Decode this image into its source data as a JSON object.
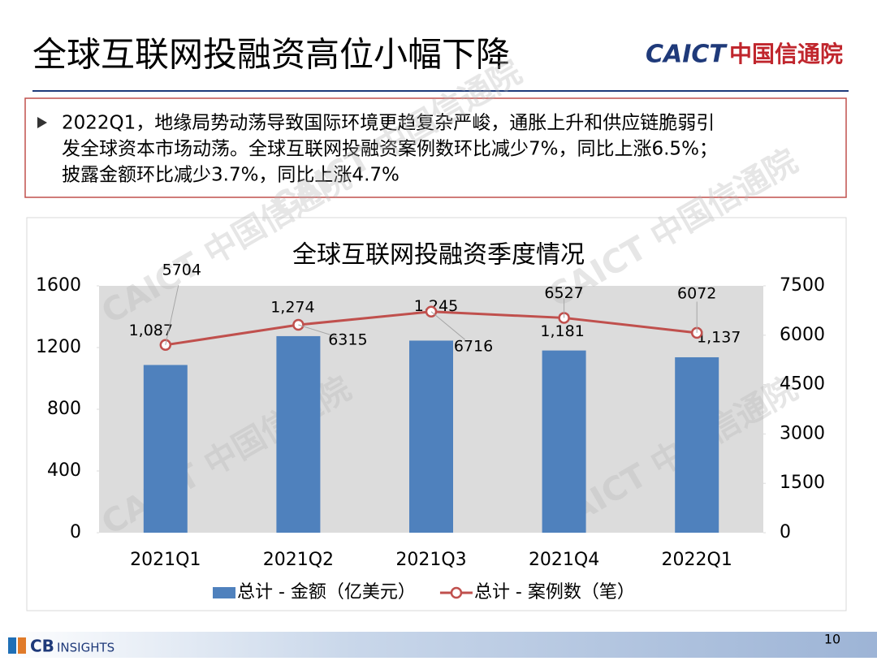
{
  "header": {
    "title": "全球互联网投融资高位小幅下降",
    "logo_en": "CAICT",
    "logo_cn": "中国信通院"
  },
  "bullet": {
    "lines": [
      "2022Q1，地缘局势动荡导致国际环境更趋复杂严峻，通胀上升和供应链脆弱引",
      "发全球资本市场动荡。全球互联网投融资案例数环比减少7%，同比上涨6.5%；",
      "披露金额环比减少3.7%，同比上涨4.7%"
    ]
  },
  "watermark": "CAICT 中国信通院",
  "chart_data": {
    "type": "bar",
    "title": "全球互联网投融资季度情况",
    "categories": [
      "2021Q1",
      "2021Q2",
      "2021Q3",
      "2021Q4",
      "2022Q1"
    ],
    "series": [
      {
        "name": "总计 - 金额（亿美元）",
        "type": "bar",
        "color": "#4f81bd",
        "values": [
          1087,
          1274,
          1245,
          1181,
          1137
        ],
        "value_labels": [
          "1,087",
          "1,274",
          "1,245",
          "1,181",
          "1,137"
        ]
      },
      {
        "name": "总计 - 案例数（笔）",
        "type": "line",
        "axis": "y2",
        "color": "#c0504d",
        "values": [
          5704,
          6315,
          6716,
          6527,
          6072
        ]
      }
    ],
    "ylim": [
      0,
      1600
    ],
    "yticks": [
      0,
      400,
      800,
      1200,
      1600
    ],
    "y2lim": [
      0,
      7500
    ],
    "y2ticks": [
      0,
      1500,
      3000,
      4500,
      6000,
      7500
    ],
    "legend": "bottom"
  },
  "footer": {
    "brand": "CB",
    "brand_suffix": "INSIGHTS",
    "page": 10
  }
}
